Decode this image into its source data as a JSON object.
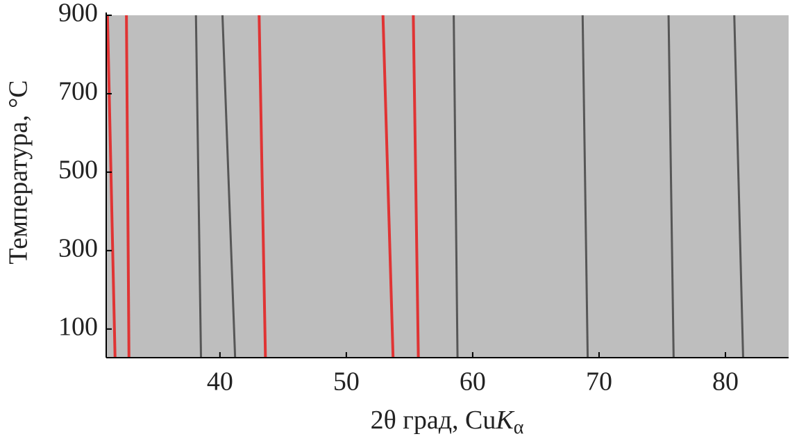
{
  "chart_data": {
    "type": "line",
    "ylabel": "Температура, °C",
    "xlabel": {
      "text": "2θ град, Cu",
      "symbol": "K",
      "subscript": "α"
    },
    "xlim": [
      31,
      85
    ],
    "ylim": [
      27,
      900
    ],
    "xticks": [
      40,
      50,
      60,
      70,
      80
    ],
    "yticks": [
      100,
      300,
      500,
      700,
      900
    ],
    "background_color": "#bebebe",
    "stripe_color": "#333333",
    "stripes": [
      {
        "x": [
          32.6,
          32.8
        ],
        "y": [
          900,
          27
        ]
      },
      {
        "x": [
          38.1,
          38.5
        ],
        "y": [
          900,
          27
        ]
      },
      {
        "x": [
          40.2,
          41.2
        ],
        "y": [
          900,
          27
        ]
      },
      {
        "x": [
          58.5,
          58.8
        ],
        "y": [
          900,
          27
        ]
      },
      {
        "x": [
          68.7,
          69.1
        ],
        "y": [
          900,
          27
        ]
      },
      {
        "x": [
          75.5,
          75.9
        ],
        "y": [
          900,
          27
        ]
      },
      {
        "x": [
          80.7,
          81.4
        ],
        "y": [
          900,
          27
        ]
      }
    ],
    "line_color": "#e03434",
    "red_lines": [
      {
        "x": [
          31.1,
          31.7
        ],
        "y": [
          900,
          27
        ]
      },
      {
        "x": [
          32.6,
          32.8
        ],
        "y": [
          900,
          27
        ]
      },
      {
        "x": [
          43.1,
          43.6
        ],
        "y": [
          900,
          27
        ]
      },
      {
        "x": [
          52.9,
          53.7
        ],
        "y": [
          900,
          27
        ]
      },
      {
        "x": [
          55.3,
          55.7
        ],
        "y": [
          900,
          27
        ]
      }
    ]
  }
}
